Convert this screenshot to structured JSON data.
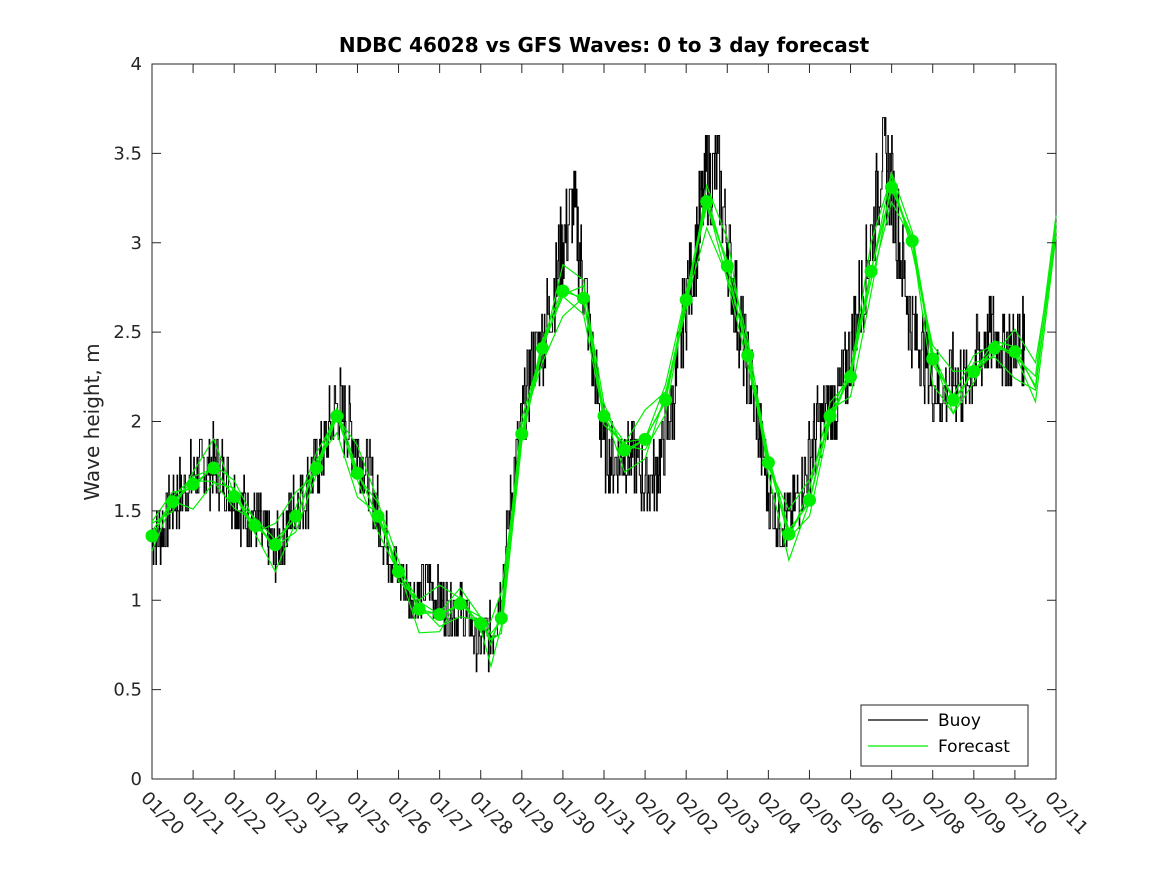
{
  "colors": {
    "buoy": "#000000",
    "forecast": "#00ee00",
    "axis": "#262626"
  },
  "chart_data": {
    "type": "line",
    "title": "NDBC 46028 vs GFS Waves: 0 to 3 day forecast",
    "xlabel": "",
    "ylabel": "Wave height, m",
    "xlim": [
      0,
      22
    ],
    "ylim": [
      0,
      4
    ],
    "xticks": [
      0,
      1,
      2,
      3,
      4,
      5,
      6,
      7,
      8,
      9,
      10,
      11,
      12,
      13,
      14,
      15,
      16,
      17,
      18,
      19,
      20,
      21,
      22
    ],
    "xtick_labels": [
      "01/20",
      "01/21",
      "01/22",
      "01/23",
      "01/24",
      "01/25",
      "01/26",
      "01/27",
      "01/28",
      "01/29",
      "01/30",
      "01/31",
      "02/01",
      "02/02",
      "02/03",
      "02/04",
      "02/05",
      "02/06",
      "02/07",
      "02/08",
      "02/09",
      "02/10",
      "02/11"
    ],
    "yticks": [
      0,
      0.5,
      1,
      1.5,
      2,
      2.5,
      3,
      3.5,
      4
    ],
    "ytick_labels": [
      "0",
      "0.5",
      "1",
      "1.5",
      "2",
      "2.5",
      "3",
      "3.5",
      "4"
    ],
    "grid": false,
    "legend": {
      "location": "bottom-right",
      "entries": [
        "Buoy",
        "Forecast"
      ]
    },
    "series": [
      {
        "name": "Buoy",
        "x": [
          0,
          0.25,
          0.5,
          0.75,
          1,
          1.25,
          1.5,
          1.75,
          2,
          2.25,
          2.5,
          2.75,
          3,
          3.25,
          3.5,
          3.75,
          4,
          4.25,
          4.5,
          4.75,
          5,
          5.25,
          5.5,
          5.75,
          6,
          6.25,
          6.5,
          6.75,
          7,
          7.25,
          7.5,
          7.75,
          8,
          8.25,
          8.5,
          8.75,
          9,
          9.25,
          9.5,
          9.75,
          10,
          10.25,
          10.5,
          10.75,
          11,
          11.25,
          11.5,
          11.75,
          12,
          12.25,
          12.5,
          12.75,
          13,
          13.25,
          13.5,
          13.75,
          14,
          14.25,
          14.5,
          14.75,
          15,
          15.25,
          15.5,
          15.75,
          16,
          16.25,
          16.5,
          16.75,
          17,
          17.25,
          17.5,
          17.75,
          18,
          18.25,
          18.5,
          18.75,
          19,
          19.25,
          19.5,
          19.75,
          20,
          20.25,
          20.5,
          20.75,
          21,
          21.25
        ],
        "values": [
          1.35,
          1.4,
          1.55,
          1.6,
          1.7,
          1.75,
          1.75,
          1.7,
          1.6,
          1.5,
          1.45,
          1.35,
          1.25,
          1.4,
          1.55,
          1.6,
          1.75,
          1.9,
          2.1,
          2.0,
          1.85,
          1.7,
          1.5,
          1.3,
          1.15,
          1.05,
          1.05,
          1.1,
          1.0,
          0.95,
          0.95,
          0.85,
          0.75,
          0.8,
          1.05,
          1.6,
          2.0,
          2.35,
          2.45,
          2.7,
          3.0,
          3.2,
          2.8,
          2.3,
          1.85,
          1.75,
          1.85,
          1.8,
          1.65,
          1.7,
          1.95,
          2.2,
          2.7,
          3.0,
          3.35,
          3.4,
          3.0,
          2.6,
          2.3,
          2.0,
          1.6,
          1.45,
          1.45,
          1.6,
          1.8,
          2.0,
          2.05,
          2.15,
          2.4,
          2.7,
          3.0,
          3.5,
          3.3,
          2.9,
          2.5,
          2.4,
          2.2,
          2.15,
          2.25,
          2.2,
          2.3,
          2.45,
          2.5,
          2.4,
          2.45,
          2.4
        ]
      },
      {
        "name": "Forecast",
        "x": [
          0,
          0.5,
          1,
          1.5,
          2,
          2.5,
          3,
          3.5,
          4,
          4.5,
          5,
          5.5,
          6,
          6.5,
          7,
          7.5,
          8,
          8.25,
          8.5,
          9,
          9.5,
          10,
          10.5,
          11,
          11.5,
          12,
          12.5,
          13,
          13.5,
          14,
          14.5,
          15,
          15.5,
          16,
          16.5,
          17,
          17.5,
          18,
          18.5,
          19,
          19.5,
          20,
          20.5,
          21,
          21.5,
          22
        ],
        "values": [
          1.36,
          1.55,
          1.65,
          1.74,
          1.58,
          1.42,
          1.31,
          1.47,
          1.74,
          2.03,
          1.71,
          1.47,
          1.16,
          0.95,
          0.92,
          0.98,
          0.87,
          0.78,
          0.9,
          1.93,
          2.41,
          2.73,
          2.69,
          2.03,
          1.84,
          1.9,
          2.12,
          2.68,
          3.23,
          2.87,
          2.37,
          1.77,
          1.37,
          1.56,
          2.03,
          2.25,
          2.84,
          3.31,
          3.01,
          2.35,
          2.12,
          2.28,
          2.41,
          2.39,
          2.2,
          3.07
        ]
      }
    ],
    "markers": {
      "series": "Forecast",
      "x": [
        0,
        0.5,
        1,
        1.5,
        2,
        2.5,
        3,
        3.5,
        4,
        4.5,
        5,
        5.5,
        6,
        6.5,
        7,
        7.5,
        8,
        8.5,
        9,
        9.5,
        10,
        10.5,
        11,
        11.5,
        12,
        12.5,
        13,
        13.5,
        14,
        14.5,
        15,
        15.5,
        16,
        16.5,
        17,
        17.5,
        18,
        18.5,
        19,
        19.5,
        20,
        20.5,
        21
      ],
      "values": [
        1.36,
        1.55,
        1.65,
        1.74,
        1.58,
        1.42,
        1.31,
        1.47,
        1.74,
        2.03,
        1.71,
        1.47,
        1.16,
        0.95,
        0.92,
        0.98,
        0.87,
        0.9,
        1.93,
        2.41,
        2.73,
        2.69,
        2.03,
        1.84,
        1.9,
        2.12,
        2.68,
        3.23,
        2.87,
        2.37,
        1.77,
        1.37,
        1.56,
        2.03,
        2.25,
        2.84,
        3.31,
        3.01,
        2.35,
        2.12,
        2.28,
        2.41,
        2.39
      ]
    }
  }
}
